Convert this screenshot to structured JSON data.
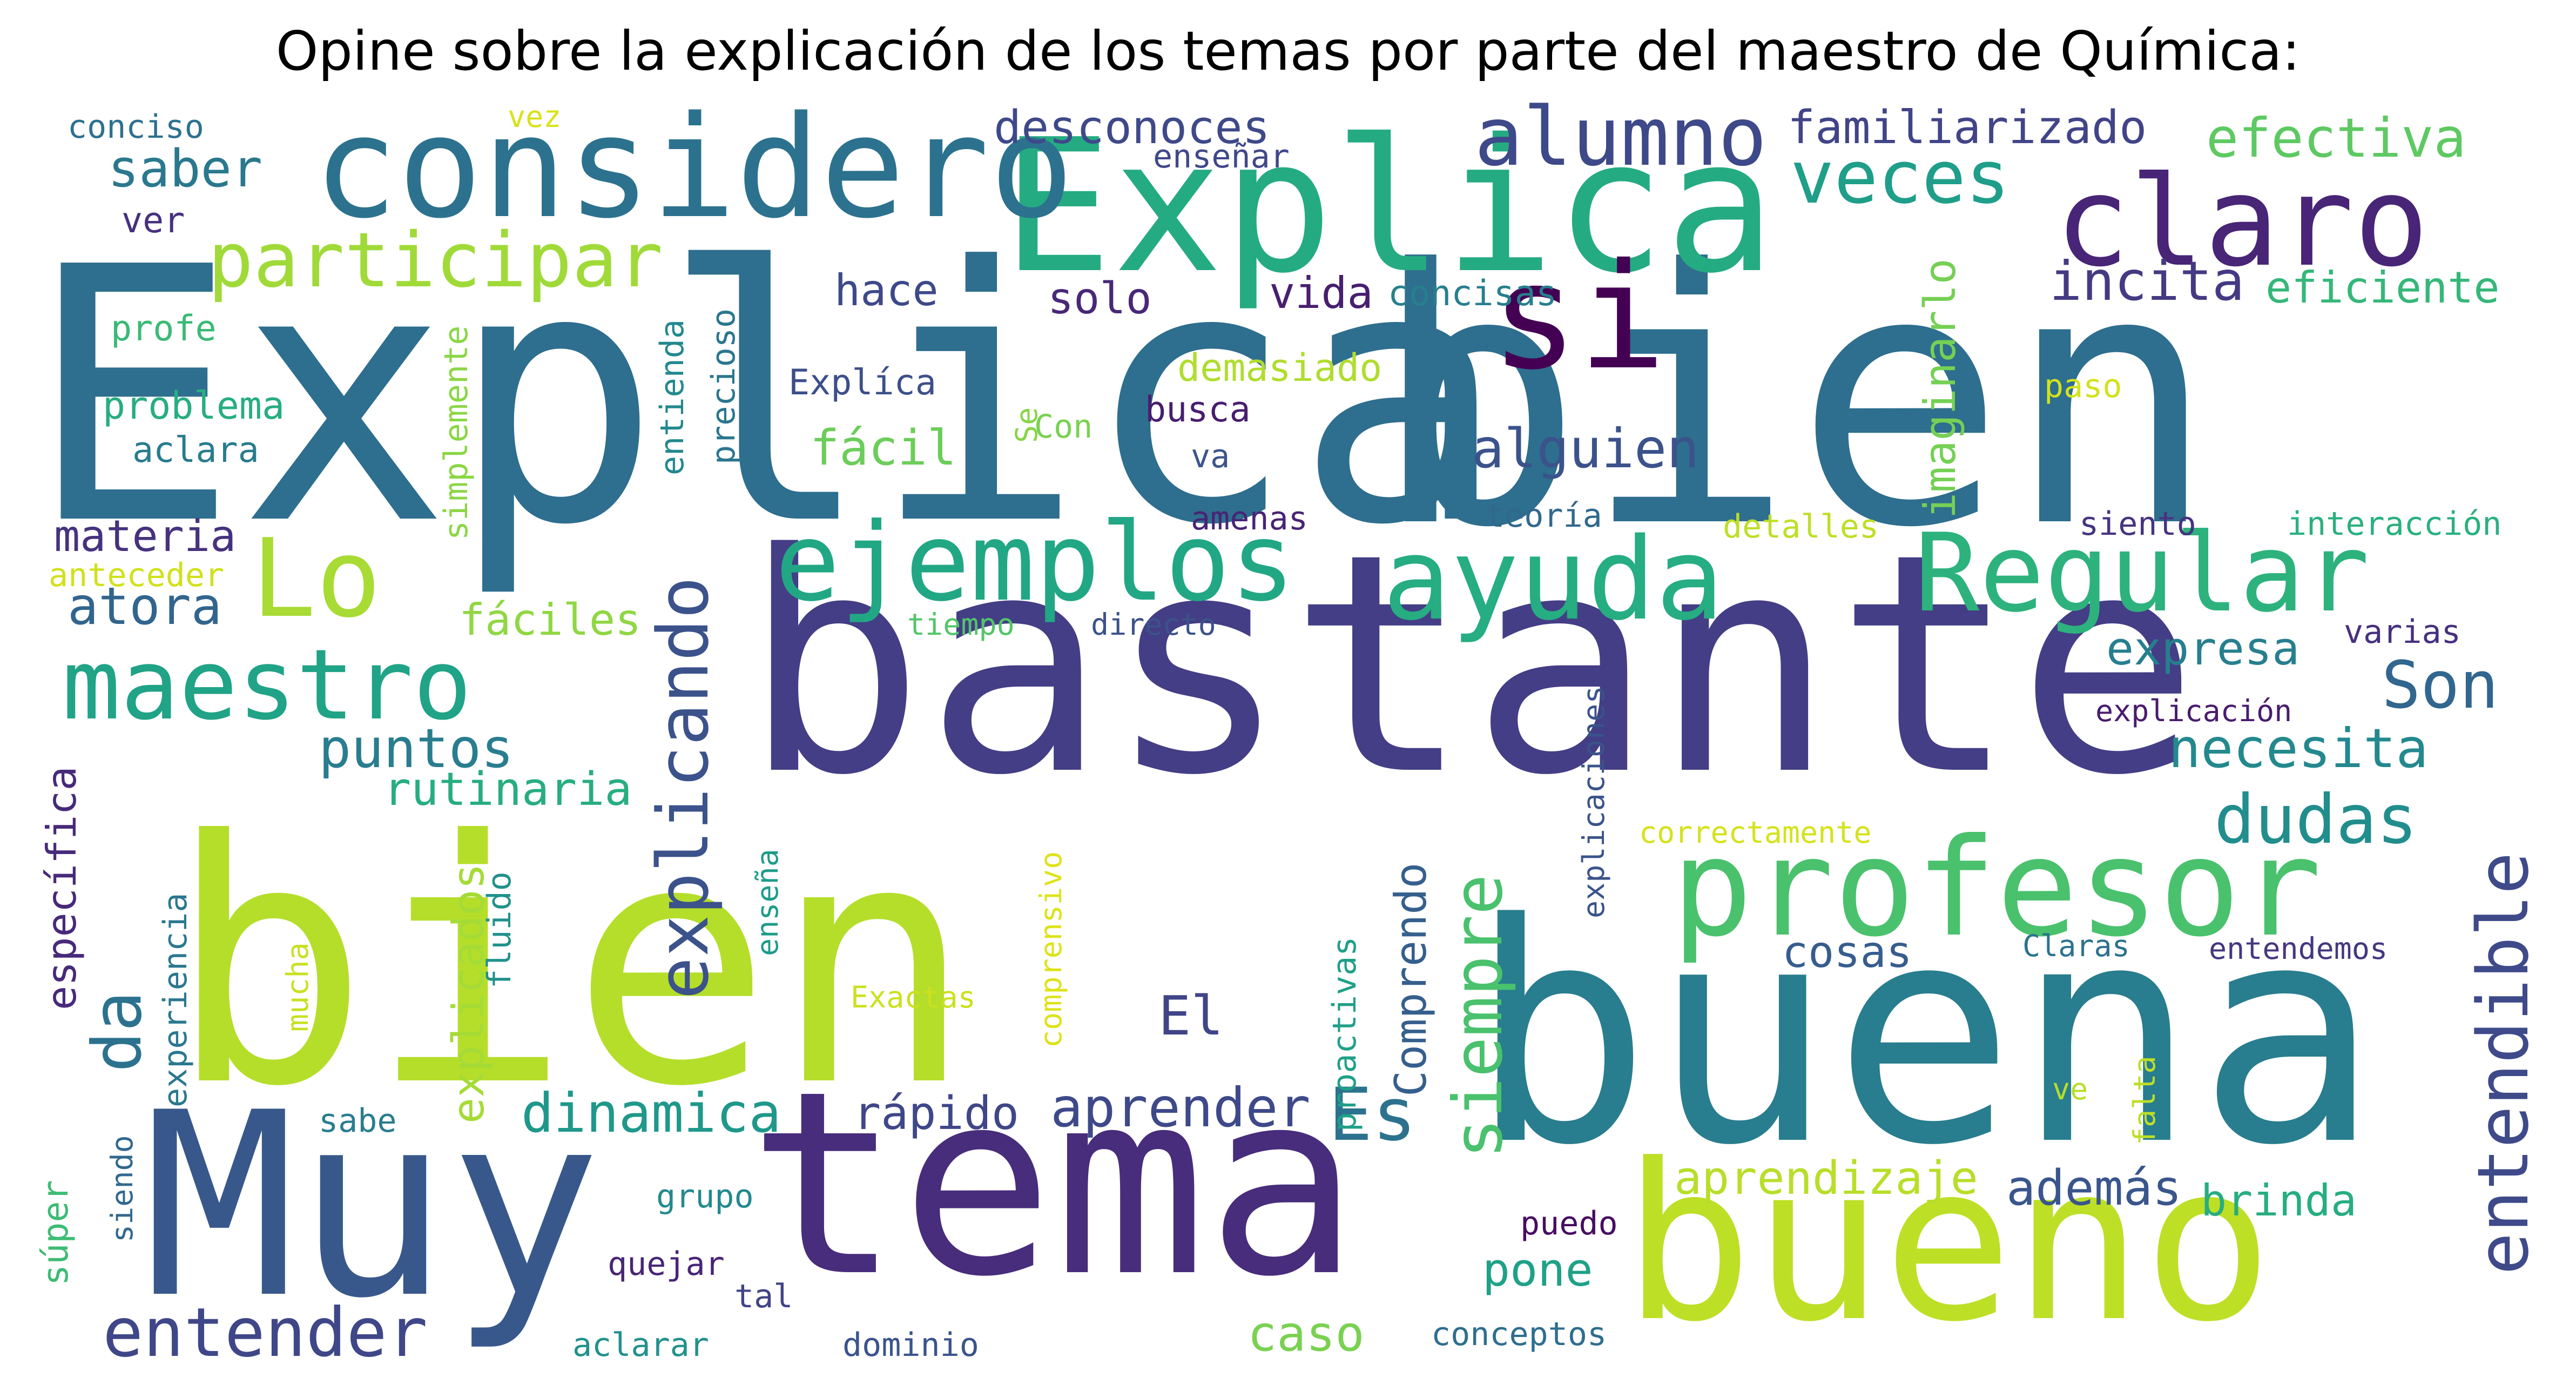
{
  "title": "Opine sobre la explicación de los temas por parte del maestro de Química:",
  "words": [
    {
      "text": "Explica",
      "color": "#2e6e8e"
    },
    {
      "text": "bien",
      "color": "#2e6e8e"
    },
    {
      "text": "bien",
      "color": "#b5de2b"
    },
    {
      "text": "bastante",
      "color": "#433e85"
    },
    {
      "text": "buena",
      "color": "#287d8e"
    },
    {
      "text": "Muy",
      "color": "#38588c"
    },
    {
      "text": "tema",
      "color": "#472d7b"
    },
    {
      "text": "bueno",
      "color": "#bddf26"
    },
    {
      "text": "Explica",
      "color": "#25ab82"
    },
    {
      "text": "considero",
      "color": "#2c728e"
    },
    {
      "text": "claro",
      "color": "#482576"
    },
    {
      "text": "si",
      "color": "#440154"
    },
    {
      "text": "profesor",
      "color": "#4ac16d"
    },
    {
      "text": "Regular",
      "color": "#2db27d"
    },
    {
      "text": "ayuda",
      "color": "#26ad81"
    },
    {
      "text": "ejemplos",
      "color": "#22a785"
    },
    {
      "text": "Lo",
      "color": "#a8db34"
    },
    {
      "text": "maestro",
      "color": "#20a386"
    },
    {
      "text": "alumno",
      "color": "#3e4989"
    },
    {
      "text": "veces",
      "color": "#1f9e89"
    },
    {
      "text": "participar",
      "color": "#a0da39"
    },
    {
      "text": "explicando",
      "color": "#3b528b"
    },
    {
      "text": "entendible",
      "color": "#3e4a89"
    },
    {
      "text": "da",
      "color": "#2c728e"
    },
    {
      "text": "entender",
      "color": "#3f4788"
    },
    {
      "text": "siempre",
      "color": "#4ac16d"
    },
    {
      "text": "dudas",
      "color": "#228d8d"
    },
    {
      "text": "Son",
      "color": "#31668e"
    },
    {
      "text": "efectiva",
      "color": "#5ec962"
    },
    {
      "text": "familiarizado",
      "color": "#414487"
    },
    {
      "text": "desconoces",
      "color": "#3e4989"
    },
    {
      "text": "saber",
      "color": "#2a788e"
    },
    {
      "text": "incita",
      "color": "#443a83"
    },
    {
      "text": "eficiente",
      "color": "#35b779"
    },
    {
      "text": "alguien",
      "color": "#3b528b"
    },
    {
      "text": "necesita",
      "color": "#23898e"
    },
    {
      "text": "puntos",
      "color": "#287d8e"
    },
    {
      "text": "atora",
      "color": "#32658e"
    },
    {
      "text": "rutinaria",
      "color": "#27ad81"
    },
    {
      "text": "fáciles",
      "color": "#90d743"
    },
    {
      "text": "dinamica",
      "color": "#1f988b"
    },
    {
      "text": "aprender",
      "color": "#3e4989"
    },
    {
      "text": "Es",
      "color": "#2c728e"
    },
    {
      "text": "El",
      "color": "#404588"
    },
    {
      "text": "además",
      "color": "#39568c"
    },
    {
      "text": "aprendizaje",
      "color": "#b8de29"
    },
    {
      "text": "brinda",
      "color": "#27ad81"
    },
    {
      "text": "expresa",
      "color": "#277f8e"
    },
    {
      "text": "materia",
      "color": "#46327e"
    },
    {
      "text": "fácil",
      "color": "#6ccd5a"
    },
    {
      "text": "hace",
      "color": "#3e4989"
    },
    {
      "text": "solo",
      "color": "#482878"
    },
    {
      "text": "vida",
      "color": "#481f70"
    },
    {
      "text": "cosas",
      "color": "#365d8d"
    },
    {
      "text": "rápido",
      "color": "#3f4788"
    },
    {
      "text": "caso",
      "color": "#7ad151"
    },
    {
      "text": "pone",
      "color": "#1fa187"
    },
    {
      "text": "específica",
      "color": "#472a7a"
    },
    {
      "text": "experiencia",
      "color": "#2a788e"
    },
    {
      "text": "explicados",
      "color": "#a5db36"
    },
    {
      "text": "fluido",
      "color": "#21918c"
    },
    {
      "text": "Comprendo",
      "color": "#355f8d"
    },
    {
      "text": "proactivas",
      "color": "#1fa088"
    },
    {
      "text": "comprensivo",
      "color": "#dde318"
    },
    {
      "text": "imaginarlo",
      "color": "#75d054"
    },
    {
      "text": "explicaciones",
      "color": "#3a538b"
    },
    {
      "text": "simplemente",
      "color": "#8bd646"
    },
    {
      "text": "entienda",
      "color": "#23888e"
    },
    {
      "text": "precioso",
      "color": "#2a768e"
    },
    {
      "text": "mucha",
      "color": "#c8e020"
    },
    {
      "text": "enseña",
      "color": "#1e9c89"
    },
    {
      "text": "siendo",
      "color": "#31688e"
    },
    {
      "text": "súper",
      "color": "#3dbc74"
    },
    {
      "text": "falta",
      "color": "#bddf26"
    },
    {
      "text": "conciso",
      "color": "#2d718e"
    },
    {
      "text": "vez",
      "color": "#d8e219"
    },
    {
      "text": "ver",
      "color": "#46307e"
    },
    {
      "text": "profe",
      "color": "#3aba76"
    },
    {
      "text": "problema",
      "color": "#27ad81"
    },
    {
      "text": "aclara",
      "color": "#287c8e"
    },
    {
      "text": "anteceder",
      "color": "#d0e11c"
    },
    {
      "text": "enseñar",
      "color": "#3f4889"
    },
    {
      "text": "concisas",
      "color": "#277f8e"
    },
    {
      "text": "demasiado",
      "color": "#b0dd2f"
    },
    {
      "text": "Explíca",
      "color": "#3c4f8a"
    },
    {
      "text": "Se",
      "color": "#86d549"
    },
    {
      "text": "Con",
      "color": "#7ad151"
    },
    {
      "text": "busca",
      "color": "#481d6f"
    },
    {
      "text": "va",
      "color": "#3a548c"
    },
    {
      "text": "paso",
      "color": "#d2e21b"
    },
    {
      "text": "teoría",
      "color": "#31688e"
    },
    {
      "text": "amenas",
      "color": "#482475"
    },
    {
      "text": "detalles",
      "color": "#bddf26"
    },
    {
      "text": "siento",
      "color": "#46337f"
    },
    {
      "text": "interacción",
      "color": "#2ab07f"
    },
    {
      "text": "tiempo",
      "color": "#52c569"
    },
    {
      "text": "directo",
      "color": "#3b528b"
    },
    {
      "text": "varias",
      "color": "#46307e"
    },
    {
      "text": "explicación",
      "color": "#481c6e"
    },
    {
      "text": "correctamente",
      "color": "#d5e21a"
    },
    {
      "text": "Claras",
      "color": "#2c728e"
    },
    {
      "text": "entendemos",
      "color": "#453781"
    },
    {
      "text": "Exactas",
      "color": "#cae11f"
    },
    {
      "text": "ve",
      "color": "#b8de29"
    },
    {
      "text": "sabe",
      "color": "#287d8e"
    },
    {
      "text": "grupo",
      "color": "#23898e"
    },
    {
      "text": "puedo",
      "color": "#470d60"
    },
    {
      "text": "quejar",
      "color": "#482576"
    },
    {
      "text": "tal",
      "color": "#414487"
    },
    {
      "text": "aclarar",
      "color": "#21918c"
    },
    {
      "text": "dominio",
      "color": "#3a548c"
    },
    {
      "text": "conceptos",
      "color": "#2e6e8e"
    }
  ]
}
